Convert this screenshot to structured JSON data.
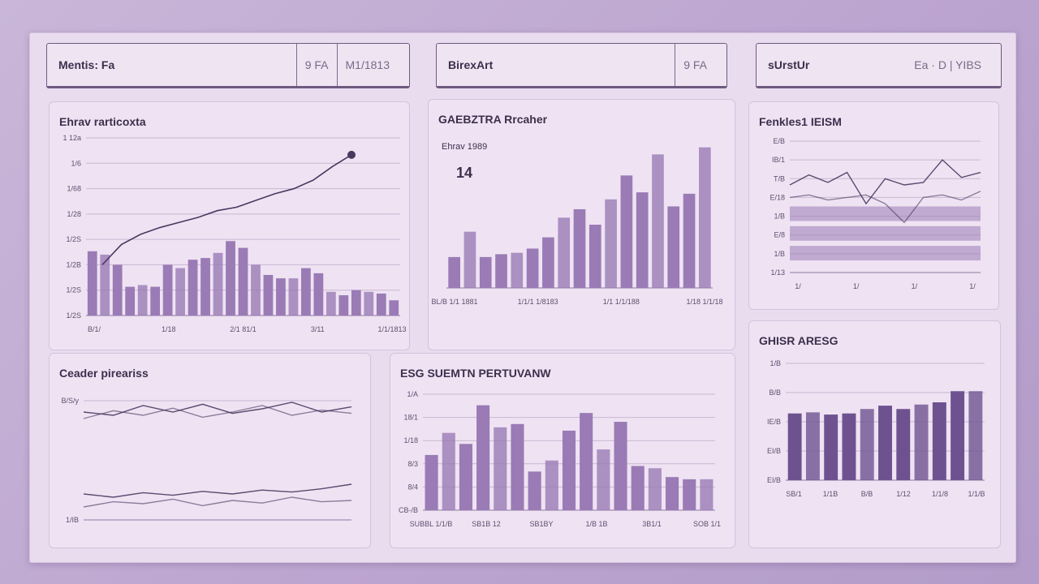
{
  "headers": [
    {
      "title": "Mentis: Fa",
      "segments": [
        "9 FA",
        "M1/1813"
      ]
    },
    {
      "title": "BirexArt",
      "segments": [
        "9 FA"
      ]
    },
    {
      "title": "sUrstUr",
      "segments": [
        "Ea · D | YIBS"
      ]
    }
  ],
  "colors": {
    "bar": "#9a7bb5",
    "bar_dark": "#6e5290",
    "line": "#4a3860",
    "grid": "#c8b6d2"
  },
  "chart_data": [
    {
      "id": "a",
      "type": "bar",
      "title": "Ehrav rarticoxta",
      "ylabels": [
        "1 12a",
        "1/6",
        "1/68",
        "1/28",
        "1/2S",
        "1/2B",
        "1/2S",
        "1/2S"
      ],
      "ylim": [
        0,
        100
      ],
      "values": [
        38,
        36,
        30,
        17,
        18,
        17,
        30,
        28,
        33,
        34,
        37,
        44,
        40,
        30,
        24,
        22,
        22,
        28,
        25,
        14,
        12,
        15,
        14,
        13,
        9
      ],
      "line": [
        30,
        42,
        48,
        52,
        55,
        58,
        62,
        64,
        68,
        72,
        75,
        80,
        88,
        95
      ],
      "xlabels": [
        "B/1/",
        "1/18",
        "2/1 81/1",
        "3/11",
        "1/1/1813"
      ]
    },
    {
      "id": "b",
      "type": "bar",
      "title": "GAEBZTRA Rrcaher",
      "subtitle": "Ehrav 1989",
      "note": "14",
      "ylim": [
        0,
        100
      ],
      "values": [
        22,
        40,
        22,
        24,
        25,
        28,
        36,
        50,
        56,
        45,
        63,
        80,
        68,
        95,
        58,
        67,
        100
      ],
      "xlabels": [
        "BL/B 1/1 1881",
        "1/1/1 1/8183",
        "1/1 1/1/188",
        "1/18 1/1/18"
      ]
    },
    {
      "id": "c",
      "type": "line",
      "title": "Fenkles1 IEISM",
      "ylabels": [
        "E/B",
        "IB/1",
        "T/B",
        "E/18",
        "1/B",
        "E/8",
        "1/B",
        "1/13"
      ],
      "ylim": [
        0,
        100
      ],
      "series": [
        {
          "name": "s1",
          "values": [
            70,
            78,
            72,
            80,
            55,
            75,
            70,
            72,
            90,
            76,
            80
          ]
        },
        {
          "name": "s2",
          "values": [
            60,
            62,
            58,
            60,
            62,
            55,
            40,
            60,
            62,
            58,
            65
          ]
        }
      ],
      "bands": [
        0.75,
        0.6,
        0.45
      ],
      "xlabels": [
        "1/",
        "1/",
        "1/",
        "1/"
      ]
    },
    {
      "id": "d",
      "type": "line",
      "title": "Ceader pireariss",
      "ylabels": [
        "B/S/y",
        "1/IB"
      ],
      "ylim": [
        0,
        100
      ],
      "series": [
        {
          "name": "top-a",
          "values": [
            60,
            55,
            70,
            60,
            72,
            58,
            65,
            75,
            60,
            68
          ]
        },
        {
          "name": "top-b",
          "values": [
            50,
            62,
            55,
            66,
            52,
            60,
            70,
            55,
            63,
            58
          ]
        },
        {
          "name": "bottom-a",
          "values": [
            40,
            35,
            42,
            38,
            44,
            40,
            46,
            43,
            48,
            55
          ]
        },
        {
          "name": "bottom-b",
          "values": [
            20,
            28,
            25,
            32,
            22,
            30,
            26,
            35,
            28,
            30
          ]
        }
      ]
    },
    {
      "id": "e",
      "type": "bar",
      "title": "ESG SUEMTN PERTUVANW",
      "ylabels": [
        "1/A",
        "18/1",
        "1/18",
        "8/3",
        "8/4",
        "CB-/B"
      ],
      "ylim": [
        0,
        100
      ],
      "values": [
        50,
        70,
        60,
        95,
        75,
        78,
        35,
        45,
        72,
        88,
        55,
        80,
        40,
        38,
        30,
        28,
        28
      ],
      "xlabels": [
        "SUBBL 1/1/B",
        "SB1B 12",
        "SB1BY",
        "1/B 1B",
        "3B1/1",
        "SOB 1/1"
      ]
    },
    {
      "id": "f",
      "type": "bar",
      "title": "GHISR ARESG",
      "ylabels": [
        "1/B",
        "B/B",
        "IE/B",
        "EI/B",
        "EI/B"
      ],
      "ylim": [
        0,
        100
      ],
      "values": [
        60,
        61,
        59,
        60,
        64,
        67,
        64,
        68,
        70,
        80,
        80
      ],
      "xlabels": [
        "SB/1",
        "1/1B",
        "B/B",
        "1/12",
        "1/1/8",
        "1/1/B"
      ]
    }
  ]
}
